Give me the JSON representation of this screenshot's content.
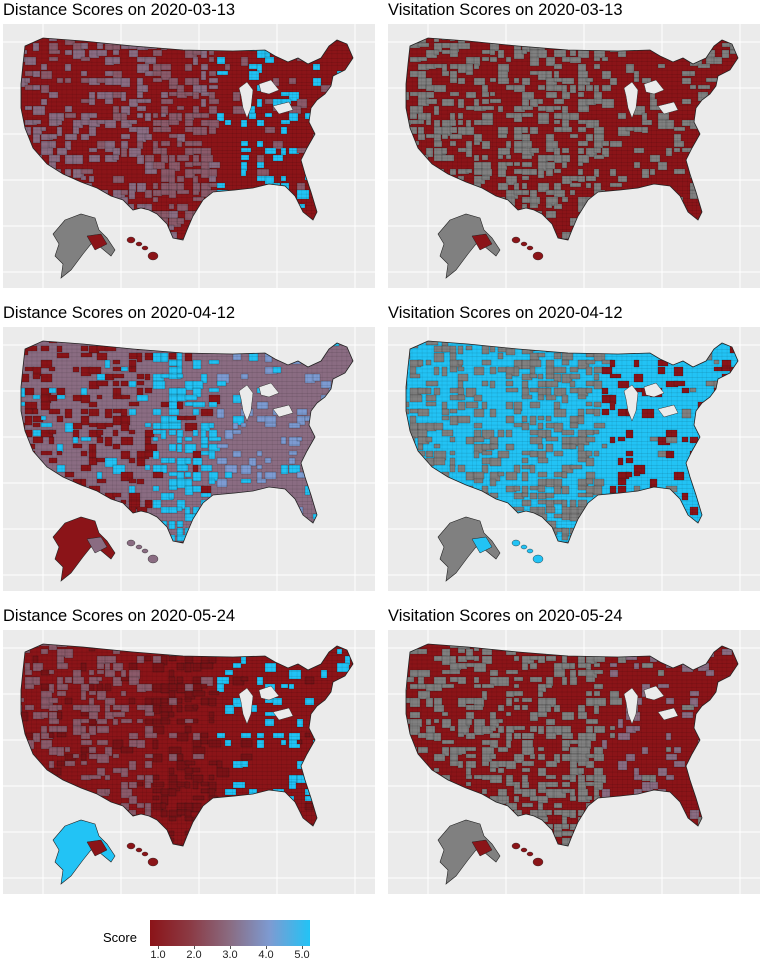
{
  "panels": [
    {
      "title": "Distance Scores on 2020-03-13",
      "pattern": "dist-0313"
    },
    {
      "title": "Visitation Scores on 2020-03-13",
      "pattern": "vis-0313"
    },
    {
      "title": "Distance Scores on 2020-04-12",
      "pattern": "dist-0412"
    },
    {
      "title": "Visitation Scores on 2020-04-12",
      "pattern": "vis-0412"
    },
    {
      "title": "Distance Scores on 2020-05-24",
      "pattern": "dist-0524"
    },
    {
      "title": "Visitation Scores on 2020-05-24",
      "pattern": "vis-0524"
    }
  ],
  "legend": {
    "title": "Score",
    "labels": [
      "1.0",
      "2.0",
      "3.0",
      "4.0",
      "5.0"
    ],
    "colors": {
      "low": "#8b1418",
      "mid": "#8a6c82",
      "high": "#22c3f5",
      "missing": "#808080"
    }
  }
}
